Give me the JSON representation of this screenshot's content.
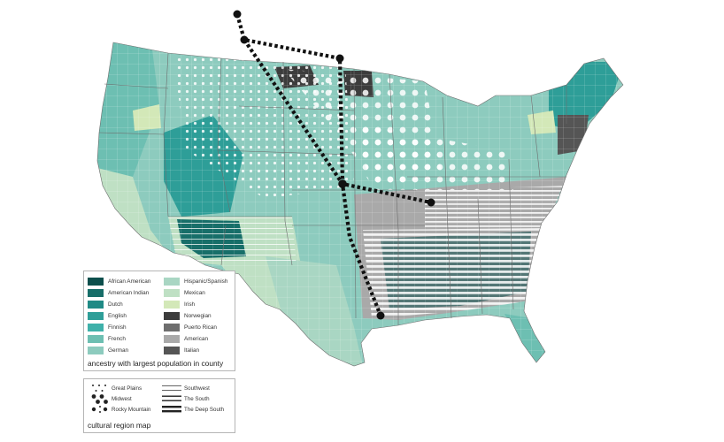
{
  "ancestry_legend": {
    "title": "ancestry with largest population in county",
    "left_items": [
      {
        "label": "African American",
        "color": "#0d4f4c"
      },
      {
        "label": "American Indian",
        "color": "#176e69"
      },
      {
        "label": "Dutch",
        "color": "#1f8a85"
      },
      {
        "label": "English",
        "color": "#2e9e98"
      },
      {
        "label": "Finnish",
        "color": "#3fb1aa"
      },
      {
        "label": "French",
        "color": "#6dbfb2"
      },
      {
        "label": "German",
        "color": "#8dcbbe"
      }
    ],
    "right_items": [
      {
        "label": "Hispanic/Spanish",
        "color": "#a9d6c3"
      },
      {
        "label": "Mexican",
        "color": "#bfe0c4"
      },
      {
        "label": "Irish",
        "color": "#d3e8b8"
      },
      {
        "label": "Norwegian",
        "color": "#3c3c3c"
      },
      {
        "label": "Puerto Rican",
        "color": "#6e6e6e"
      },
      {
        "label": "American",
        "color": "#a9a9a9"
      },
      {
        "label": "Italian",
        "color": "#555555"
      }
    ]
  },
  "region_legend": {
    "title": "cultural region map",
    "left_items": [
      {
        "label": "Great Plains",
        "icon": "small-dots-icon"
      },
      {
        "label": "Midwest",
        "icon": "large-dots-icon"
      },
      {
        "label": "Rocky Mountain",
        "icon": "mixed-dots-icon"
      }
    ],
    "right_items": [
      {
        "label": "Southwest",
        "icon": "thin-lines-icon"
      },
      {
        "label": "The South",
        "icon": "medium-lines-icon"
      },
      {
        "label": "The Deep South",
        "icon": "thick-lines-icon"
      }
    ]
  },
  "colors": {
    "route": "#111111",
    "county_border": "#ffffff",
    "state_border": "#6e6e6e"
  }
}
